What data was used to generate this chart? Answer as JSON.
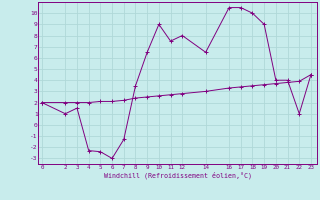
{
  "xlabel": "Windchill (Refroidissement éolien,°C)",
  "background_color": "#c8ecec",
  "grid_color": "#b0d8d8",
  "line_color": "#800080",
  "line1_x": [
    0,
    2,
    3,
    4,
    5,
    6,
    7,
    8,
    9,
    10,
    11,
    12,
    14,
    16,
    17,
    18,
    19,
    20,
    21,
    22,
    23
  ],
  "line1_y": [
    2,
    1,
    1.5,
    -2.3,
    -2.4,
    -3.0,
    -1.3,
    3.5,
    6.5,
    9.0,
    7.5,
    8.0,
    6.5,
    10.5,
    10.5,
    10.0,
    9.0,
    4.0,
    4.0,
    1.0,
    4.5
  ],
  "line2_x": [
    0,
    2,
    3,
    4,
    5,
    6,
    7,
    8,
    9,
    10,
    11,
    12,
    14,
    16,
    17,
    18,
    19,
    20,
    21,
    22,
    23
  ],
  "line2_y": [
    2.0,
    2.0,
    2.0,
    2.0,
    2.1,
    2.1,
    2.2,
    2.4,
    2.5,
    2.6,
    2.7,
    2.8,
    3.0,
    3.3,
    3.4,
    3.5,
    3.6,
    3.7,
    3.8,
    3.9,
    4.5
  ],
  "xlim": [
    -0.3,
    23.5
  ],
  "ylim": [
    -3.5,
    11.0
  ],
  "yticks": [
    10,
    9,
    8,
    7,
    6,
    5,
    4,
    3,
    2,
    1,
    0,
    -1,
    -2,
    -3
  ],
  "xticks": [
    0,
    2,
    3,
    4,
    5,
    6,
    7,
    8,
    9,
    10,
    11,
    12,
    14,
    16,
    17,
    18,
    19,
    20,
    21,
    22,
    23
  ]
}
